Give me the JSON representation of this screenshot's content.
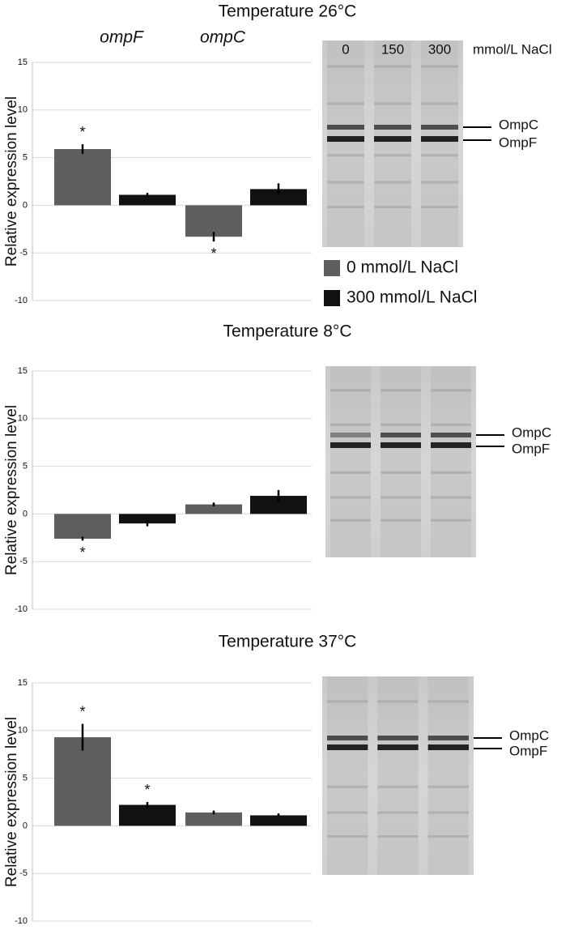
{
  "chart_data": [
    {
      "type": "bar",
      "title": "Temperature 26°C",
      "ylabel": "Relative expression level",
      "categories": [
        "ompF",
        "ompC"
      ],
      "series": [
        {
          "name": "0 mmol/L NaCl",
          "color": "#5e5e5e",
          "values": [
            5.9,
            -3.3
          ],
          "errors": [
            0.5,
            0.5
          ],
          "significance": [
            "*",
            "*"
          ]
        },
        {
          "name": "300 mmol/L NaCl",
          "color": "#111111",
          "values": [
            1.1,
            1.7
          ],
          "errors": [
            0.2,
            0.6
          ],
          "significance": [
            null,
            null
          ]
        }
      ],
      "ylim": [
        -10,
        15
      ],
      "yticks": [
        -10,
        -5,
        0,
        5,
        10,
        15
      ],
      "grid": true,
      "gel_lanes": [
        "0",
        "150",
        "300"
      ],
      "gel_lane_unit": "mmol/L NaCl",
      "gel_bands": [
        "OmpC",
        "OmpF"
      ]
    },
    {
      "type": "bar",
      "title": "Temperature 8°C",
      "ylabel": "Relative expression level",
      "categories": [
        null,
        null
      ],
      "series": [
        {
          "color": "#5e5e5e",
          "values": [
            -2.6,
            1.0
          ],
          "errors": [
            0.2,
            0.2
          ],
          "significance": [
            "*",
            null
          ]
        },
        {
          "color": "#111111",
          "values": [
            -1.0,
            1.9
          ],
          "errors": [
            0.3,
            0.6
          ],
          "significance": [
            null,
            null
          ]
        }
      ],
      "ylim": [
        -10,
        15
      ],
      "yticks": [
        -10,
        -5,
        0,
        5,
        10,
        15
      ],
      "grid": true,
      "gel_bands": [
        "OmpC",
        "OmpF"
      ]
    },
    {
      "type": "bar",
      "title": "Temperature 37°C",
      "ylabel": "Relative expression level",
      "categories": [
        null,
        null
      ],
      "series": [
        {
          "color": "#5e5e5e",
          "values": [
            9.3,
            1.4
          ],
          "errors": [
            1.4,
            0.2
          ],
          "significance": [
            "*",
            null
          ]
        },
        {
          "color": "#111111",
          "values": [
            2.2,
            1.1
          ],
          "errors": [
            0.3,
            0.2
          ],
          "significance": [
            "*",
            null
          ]
        }
      ],
      "ylim": [
        -10,
        15
      ],
      "yticks": [
        -10,
        -5,
        0,
        5,
        10,
        15
      ],
      "grid": true,
      "gel_bands": [
        "OmpC",
        "OmpF"
      ]
    }
  ]
}
